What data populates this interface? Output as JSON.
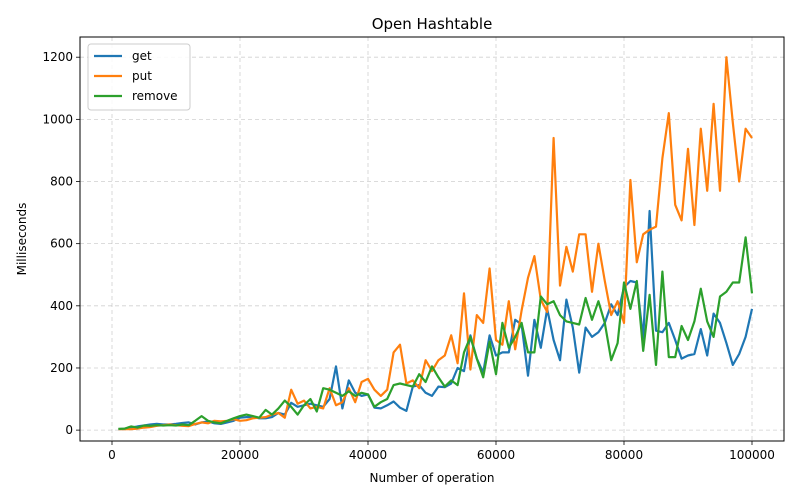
{
  "chart_data": {
    "type": "line",
    "title": "Open Hashtable",
    "xlabel": "Number of operation",
    "ylabel": "Milliseconds",
    "xlim": [
      -5000,
      105000
    ],
    "ylim": [
      -35,
      1265
    ],
    "xticks": [
      0,
      20000,
      40000,
      60000,
      80000,
      100000
    ],
    "yticks": [
      0,
      200,
      400,
      600,
      800,
      1000,
      1200
    ],
    "grid": true,
    "legend_position": "upper-left",
    "x": [
      1000,
      2000,
      3000,
      4000,
      5000,
      6000,
      7000,
      8000,
      9000,
      10000,
      11000,
      12000,
      13000,
      14000,
      15000,
      16000,
      17000,
      18000,
      19000,
      20000,
      21000,
      22000,
      23000,
      24000,
      25000,
      26000,
      27000,
      28000,
      29000,
      30000,
      31000,
      32000,
      33000,
      34000,
      35000,
      36000,
      37000,
      38000,
      39000,
      40000,
      41000,
      42000,
      43000,
      44000,
      45000,
      46000,
      47000,
      48000,
      49000,
      50000,
      51000,
      52000,
      53000,
      54000,
      55000,
      56000,
      57000,
      58000,
      59000,
      60000,
      61000,
      62000,
      63000,
      64000,
      65000,
      66000,
      67000,
      68000,
      69000,
      70000,
      71000,
      72000,
      73000,
      74000,
      75000,
      76000,
      77000,
      78000,
      79000,
      80000,
      81000,
      82000,
      83000,
      84000,
      85000,
      86000,
      87000,
      88000,
      89000,
      90000,
      91000,
      92000,
      93000,
      94000,
      95000,
      96000,
      97000,
      98000,
      99000,
      100000
    ],
    "series": [
      {
        "name": "get",
        "color": "#1f77b4",
        "values": [
          3,
          4,
          8,
          12,
          15,
          18,
          20,
          18,
          18,
          20,
          23,
          25,
          18,
          25,
          28,
          22,
          20,
          25,
          30,
          40,
          42,
          43,
          38,
          38,
          42,
          55,
          50,
          88,
          75,
          80,
          85,
          80,
          75,
          100,
          205,
          70,
          160,
          120,
          110,
          115,
          72,
          70,
          80,
          92,
          72,
          62,
          140,
          145,
          120,
          110,
          140,
          138,
          150,
          200,
          190,
          305,
          230,
          185,
          305,
          240,
          250,
          250,
          355,
          340,
          175,
          355,
          265,
          390,
          290,
          225,
          420,
          330,
          185,
          330,
          300,
          315,
          345,
          405,
          370,
          460,
          480,
          475,
          295,
          705,
          320,
          315,
          345,
          290,
          230,
          240,
          245,
          325,
          240,
          375,
          345,
          280,
          210,
          245,
          300,
          390
        ]
      },
      {
        "name": "put",
        "color": "#ff7f0e",
        "values": [
          3,
          3,
          3,
          5,
          8,
          10,
          14,
          16,
          18,
          16,
          14,
          13,
          20,
          25,
          22,
          30,
          28,
          30,
          35,
          30,
          32,
          38,
          40,
          42,
          50,
          55,
          40,
          130,
          85,
          95,
          70,
          75,
          70,
          135,
          80,
          90,
          135,
          90,
          155,
          165,
          130,
          110,
          130,
          250,
          275,
          150,
          160,
          135,
          225,
          190,
          225,
          240,
          305,
          215,
          440,
          195,
          370,
          345,
          520,
          290,
          275,
          415,
          260,
          385,
          490,
          560,
          420,
          380,
          940,
          465,
          590,
          510,
          630,
          630,
          445,
          600,
          480,
          370,
          415,
          345,
          805,
          540,
          630,
          645,
          655,
          875,
          1020,
          725,
          675,
          905,
          660,
          970,
          770,
          1050,
          770,
          1200,
          990,
          800,
          970,
          940
        ]
      },
      {
        "name": "remove",
        "color": "#2ca02c",
        "values": [
          4,
          5,
          12,
          8,
          15,
          14,
          16,
          15,
          16,
          15,
          18,
          16,
          30,
          45,
          30,
          25,
          22,
          30,
          38,
          45,
          50,
          45,
          40,
          65,
          50,
          70,
          95,
          75,
          50,
          80,
          100,
          60,
          135,
          130,
          120,
          110,
          125,
          110,
          120,
          115,
          75,
          90,
          100,
          145,
          150,
          145,
          140,
          180,
          155,
          205,
          170,
          140,
          160,
          145,
          250,
          300,
          230,
          170,
          285,
          180,
          345,
          265,
          300,
          345,
          250,
          250,
          430,
          405,
          415,
          370,
          350,
          345,
          340,
          425,
          355,
          415,
          345,
          225,
          280,
          475,
          390,
          480,
          255,
          435,
          210,
          510,
          235,
          235,
          335,
          290,
          350,
          455,
          350,
          300,
          430,
          445,
          475,
          475,
          620,
          440
        ]
      }
    ]
  }
}
